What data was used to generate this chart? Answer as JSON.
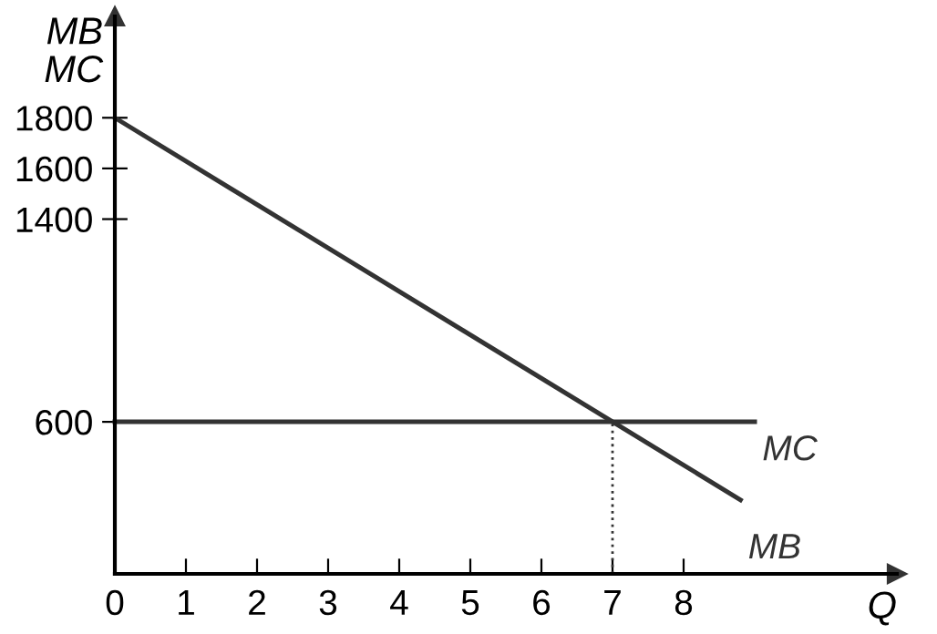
{
  "chart_data": {
    "type": "line",
    "xlabel": "Q",
    "ylabel": "MB\nMC",
    "series": [
      {
        "name": "MB",
        "color": "#333333",
        "x": [
          0,
          8.8
        ],
        "values": [
          1800,
          292
        ]
      },
      {
        "name": "MC",
        "color": "#333333",
        "x": [
          0,
          9
        ],
        "values": [
          600,
          600
        ]
      },
      {
        "color": "#333333",
        "x": [
          7,
          7
        ],
        "values": [
          0,
          600
        ],
        "line_style": "dotted"
      }
    ],
    "xlim": [
      0,
      11
    ],
    "ylim": [
      0,
      2200
    ],
    "xticks": [
      0,
      1,
      2,
      3,
      4,
      5,
      6,
      7,
      8
    ],
    "yticks": [
      600,
      1400,
      1600,
      1800
    ],
    "grid": false,
    "legend": false,
    "marker": "none",
    "line_style": "solid"
  }
}
